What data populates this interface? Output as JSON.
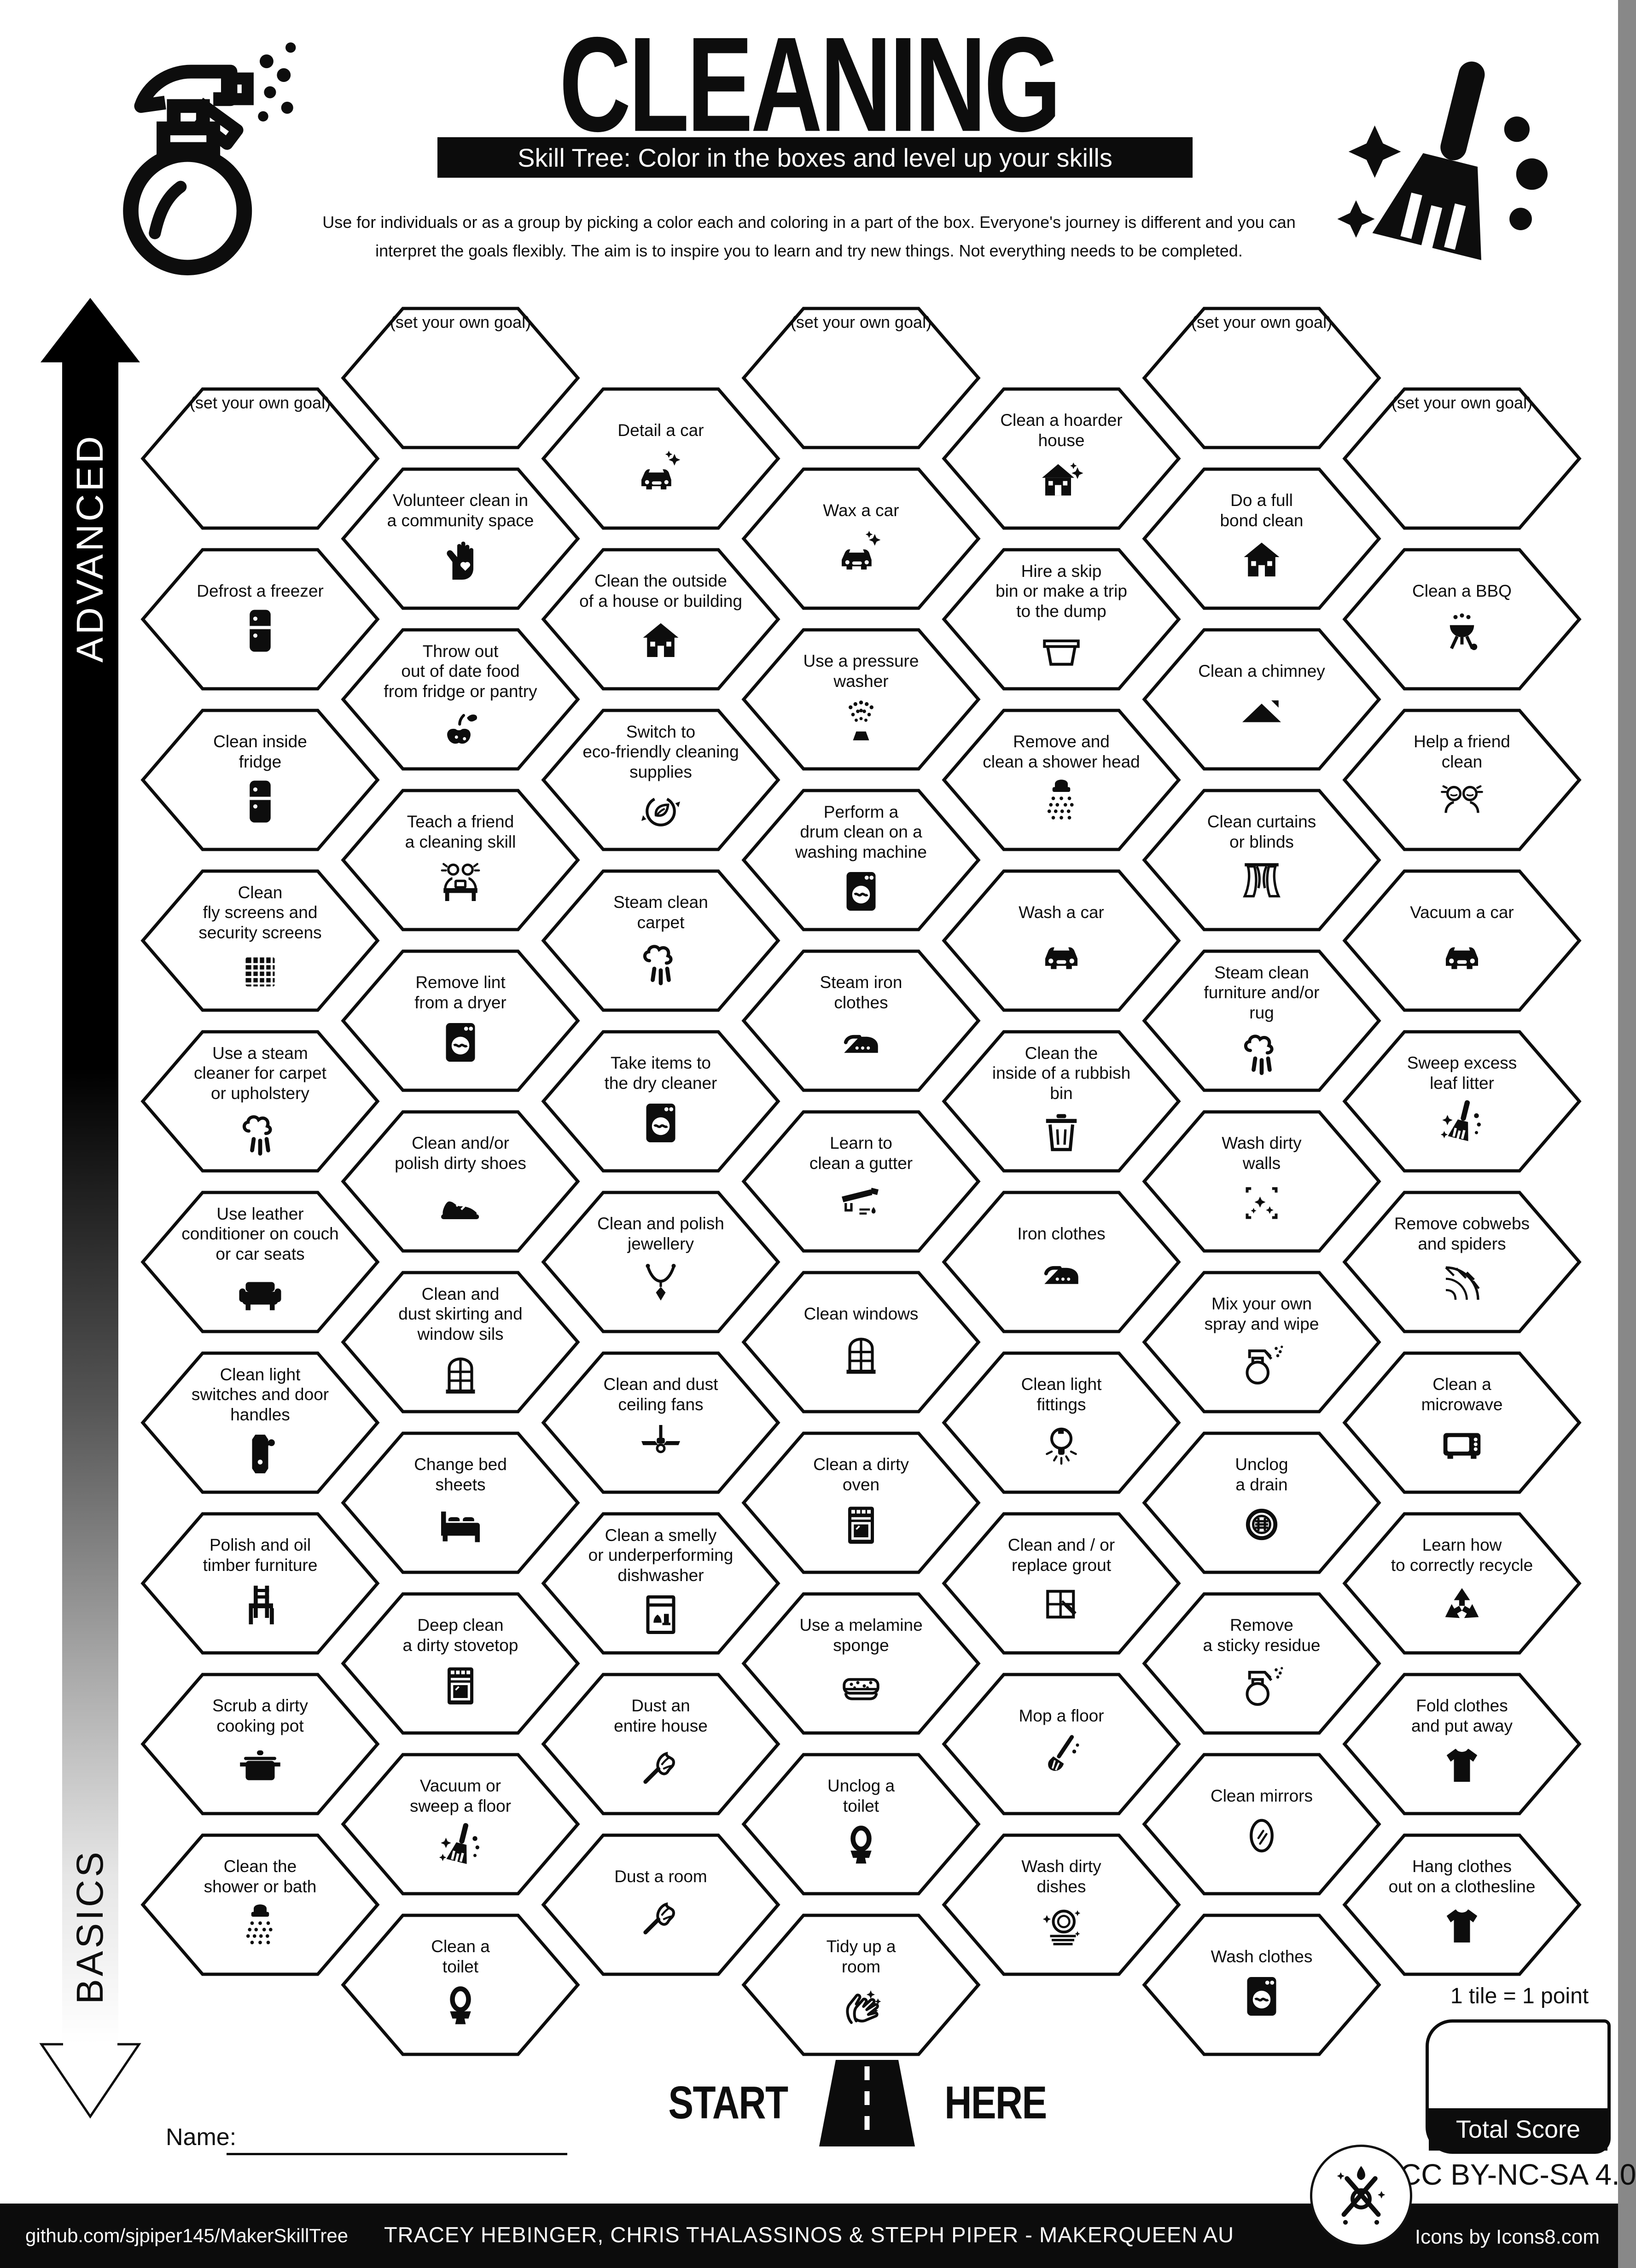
{
  "header": {
    "title": "CLEANING",
    "subtitle": "Skill Tree:  Color in the boxes and level up your skills",
    "description_line1": "Use for individuals or as a group by picking a color each and coloring in a part of the box.  Everyone's journey is different and you can",
    "description_line2": "interpret the goals flexibly.  The aim is to inspire you to learn and try new things. Not everything needs to be completed."
  },
  "axis": {
    "top_label": "ADVANCED",
    "bottom_label": "BASICS"
  },
  "start": {
    "word_left": "START",
    "word_right": "HERE"
  },
  "name_field": {
    "label": "Name:"
  },
  "score": {
    "note": "1 tile = 1 point",
    "total_label": "Total Score"
  },
  "footer": {
    "github": "github.com/sjpiper145/MakerSkillTree",
    "credits": "TRACEY HEBINGER, CHRIS THALASSINOS & STEPH PIPER  -  MAKERQUEEN AU",
    "license": "CC BY-NC-SA 4.0",
    "icons_credit": "Icons by Icons8.com"
  },
  "grid": {
    "columns": 7,
    "goal_label": "(set your own goal)"
  },
  "hexes": [
    {
      "col": 0,
      "row": 0,
      "label": "(set your own goal)",
      "icon": null
    },
    {
      "col": 0,
      "row": 1,
      "label": "Defrost a freezer",
      "icon": "fridge"
    },
    {
      "col": 0,
      "row": 2,
      "label": "Clean inside\nfridge",
      "icon": "fridge"
    },
    {
      "col": 0,
      "row": 3,
      "label": "Clean\nfly screens and\nsecurity screens",
      "icon": "screen"
    },
    {
      "col": 0,
      "row": 4,
      "label": "Use a steam\ncleaner for carpet\nor upholstery",
      "icon": "steam"
    },
    {
      "col": 0,
      "row": 5,
      "label": "Use leather\nconditioner on couch\nor car seats",
      "icon": "couch"
    },
    {
      "col": 0,
      "row": 6,
      "label": "Clean light\nswitches and door\nhandles",
      "icon": "door-handle"
    },
    {
      "col": 0,
      "row": 7,
      "label": "Polish and oil\ntimber furniture",
      "icon": "chair"
    },
    {
      "col": 0,
      "row": 8,
      "label": "Scrub a dirty\ncooking pot",
      "icon": "pot"
    },
    {
      "col": 0,
      "row": 9,
      "label": "Clean the\nshower or bath",
      "icon": "shower"
    },
    {
      "col": 1,
      "row": 0,
      "label": "(set your own goal)",
      "icon": null
    },
    {
      "col": 1,
      "row": 1,
      "label": "Volunteer clean in\na community space",
      "icon": "hand-heart"
    },
    {
      "col": 1,
      "row": 2,
      "label": "Throw out\nout of date food\nfrom fridge or pantry",
      "icon": "spoiled-food"
    },
    {
      "col": 1,
      "row": 3,
      "label": "Teach a friend\na cleaning skill",
      "icon": "people-desk"
    },
    {
      "col": 1,
      "row": 4,
      "label": "Remove lint\nfrom a dryer",
      "icon": "washer"
    },
    {
      "col": 1,
      "row": 5,
      "label": "Clean and/or\npolish dirty shoes",
      "icon": "shoe"
    },
    {
      "col": 1,
      "row": 6,
      "label": "Clean and\ndust skirting and\nwindow sils",
      "icon": "window"
    },
    {
      "col": 1,
      "row": 7,
      "label": "Change bed\nsheets",
      "icon": "bed"
    },
    {
      "col": 1,
      "row": 8,
      "label": "Deep clean\na dirty stovetop",
      "icon": "oven"
    },
    {
      "col": 1,
      "row": 9,
      "label": "Vacuum or\nsweep a floor",
      "icon": "broom"
    },
    {
      "col": 1,
      "row": 10,
      "label": "Clean a\ntoilet",
      "icon": "toilet"
    },
    {
      "col": 2,
      "row": 0,
      "label": "Detail a car",
      "icon": "car-sparkle"
    },
    {
      "col": 2,
      "row": 1,
      "label": "Clean the outside\nof a house or building",
      "icon": "house"
    },
    {
      "col": 2,
      "row": 2,
      "label": "Switch to\neco-friendly cleaning\nsupplies",
      "icon": "eco"
    },
    {
      "col": 2,
      "row": 3,
      "label": "Steam clean\ncarpet",
      "icon": "steam"
    },
    {
      "col": 2,
      "row": 4,
      "label": "Take items to\nthe dry cleaner",
      "icon": "washer"
    },
    {
      "col": 2,
      "row": 5,
      "label": "Clean and polish\njewellery",
      "icon": "necklace"
    },
    {
      "col": 2,
      "row": 6,
      "label": "Clean and dust\nceiling fans",
      "icon": "fan"
    },
    {
      "col": 2,
      "row": 7,
      "label": "Clean a smelly\nor underperforming\ndishwasher",
      "icon": "dishwasher"
    },
    {
      "col": 2,
      "row": 8,
      "label": "Dust an\nentire house",
      "icon": "duster"
    },
    {
      "col": 2,
      "row": 9,
      "label": "Dust a room",
      "icon": "duster"
    },
    {
      "col": 3,
      "row": 0,
      "label": "(set your own goal)",
      "icon": null
    },
    {
      "col": 3,
      "row": 1,
      "label": "Wax a car",
      "icon": "car-sparkle"
    },
    {
      "col": 3,
      "row": 2,
      "label": "Use a pressure\nwasher",
      "icon": "pressure"
    },
    {
      "col": 3,
      "row": 3,
      "label": "Perform a\ndrum clean on a\nwashing machine",
      "icon": "washer"
    },
    {
      "col": 3,
      "row": 4,
      "label": "Steam iron\nclothes",
      "icon": "iron"
    },
    {
      "col": 3,
      "row": 5,
      "label": "Learn to\nclean a gutter",
      "icon": "gutter"
    },
    {
      "col": 3,
      "row": 6,
      "label": "Clean windows",
      "icon": "window"
    },
    {
      "col": 3,
      "row": 7,
      "label": "Clean a dirty\noven",
      "icon": "oven"
    },
    {
      "col": 3,
      "row": 8,
      "label": "Use a melamine\nsponge",
      "icon": "sponge"
    },
    {
      "col": 3,
      "row": 9,
      "label": "Unclog a\ntoilet",
      "icon": "toilet"
    },
    {
      "col": 3,
      "row": 10,
      "label": "Tidy up a\nroom",
      "icon": "hands"
    },
    {
      "col": 4,
      "row": 0,
      "label": "Clean a hoarder\nhouse",
      "icon": "house-sparkle"
    },
    {
      "col": 4,
      "row": 1,
      "label": "Hire a skip\nbin or make a trip\nto the dump",
      "icon": "tub"
    },
    {
      "col": 4,
      "row": 2,
      "label": "Remove and\nclean a shower head",
      "icon": "shower"
    },
    {
      "col": 4,
      "row": 3,
      "label": "Wash a car",
      "icon": "car"
    },
    {
      "col": 4,
      "row": 4,
      "label": "Clean the\ninside of a rubbish\nbin",
      "icon": "trash"
    },
    {
      "col": 4,
      "row": 5,
      "label": "Iron clothes",
      "icon": "iron"
    },
    {
      "col": 4,
      "row": 6,
      "label": "Clean light\nfittings",
      "icon": "bulb"
    },
    {
      "col": 4,
      "row": 7,
      "label": "Clean and / or\nreplace grout",
      "icon": "grout"
    },
    {
      "col": 4,
      "row": 8,
      "label": "Mop a floor",
      "icon": "mop"
    },
    {
      "col": 4,
      "row": 9,
      "label": "Wash dirty\ndishes",
      "icon": "dishes"
    },
    {
      "col": 5,
      "row": 0,
      "label": "(set your own goal)",
      "icon": null
    },
    {
      "col": 5,
      "row": 1,
      "label": "Do a full\nbond clean",
      "icon": "house"
    },
    {
      "col": 5,
      "row": 2,
      "label": "Clean a chimney",
      "icon": "roof"
    },
    {
      "col": 5,
      "row": 3,
      "label": "Clean curtains\nor blinds",
      "icon": "curtains"
    },
    {
      "col": 5,
      "row": 4,
      "label": "Steam clean\nfurniture and/or\nrug",
      "icon": "steam"
    },
    {
      "col": 5,
      "row": 5,
      "label": "Wash dirty\nwalls",
      "icon": "wall"
    },
    {
      "col": 5,
      "row": 6,
      "label": "Mix your own\nspray and wipe",
      "icon": "spray"
    },
    {
      "col": 5,
      "row": 7,
      "label": "Unclog\na drain",
      "icon": "drain"
    },
    {
      "col": 5,
      "row": 8,
      "label": "Remove\na sticky residue",
      "icon": "spray"
    },
    {
      "col": 5,
      "row": 9,
      "label": "Clean mirrors",
      "icon": "mirror"
    },
    {
      "col": 5,
      "row": 10,
      "label": "Wash clothes",
      "icon": "washer"
    },
    {
      "col": 6,
      "row": 0,
      "label": "(set your own goal)",
      "icon": null
    },
    {
      "col": 6,
      "row": 1,
      "label": "Clean a BBQ",
      "icon": "bbq"
    },
    {
      "col": 6,
      "row": 2,
      "label": "Help a friend\nclean",
      "icon": "friends"
    },
    {
      "col": 6,
      "row": 3,
      "label": "Vacuum a car",
      "icon": "car"
    },
    {
      "col": 6,
      "row": 4,
      "label": "Sweep excess\nleaf litter",
      "icon": "broom"
    },
    {
      "col": 6,
      "row": 5,
      "label": "Remove cobwebs\nand spiders",
      "icon": "web"
    },
    {
      "col": 6,
      "row": 6,
      "label": "Clean a\nmicrowave",
      "icon": "microwave"
    },
    {
      "col": 6,
      "row": 7,
      "label": "Learn how\nto correctly recycle",
      "icon": "recycle"
    },
    {
      "col": 6,
      "row": 8,
      "label": "Fold clothes\nand put away",
      "icon": "shirt"
    },
    {
      "col": 6,
      "row": 9,
      "label": "Hang clothes\nout on a clothesline",
      "icon": "shirt"
    }
  ]
}
